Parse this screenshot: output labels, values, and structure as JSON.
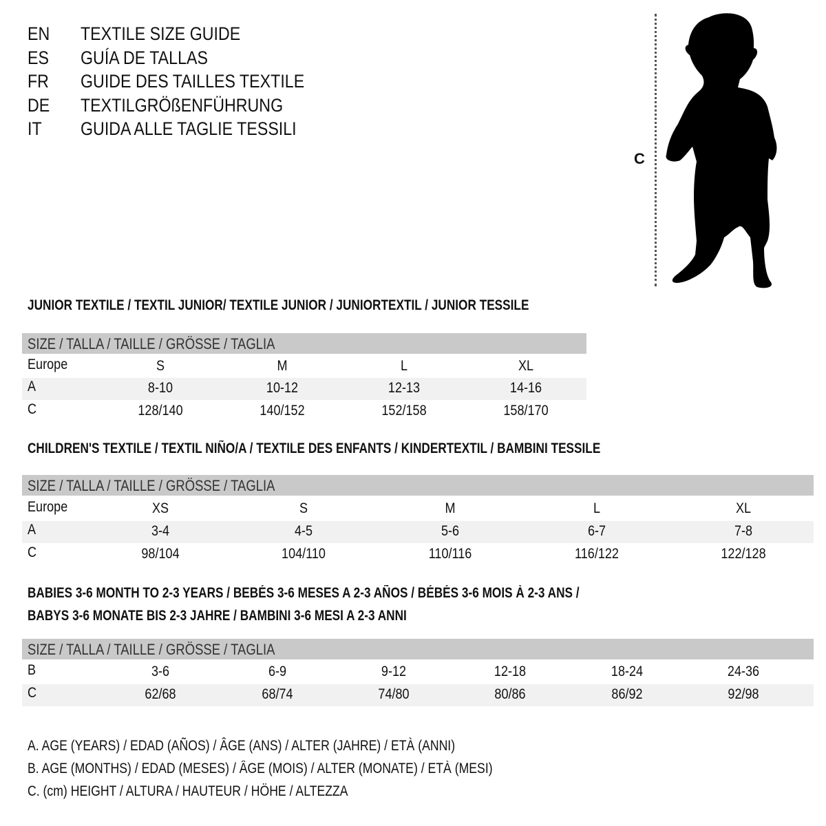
{
  "header": {
    "languages": [
      {
        "code": "EN",
        "title": "TEXTILE SIZE GUIDE"
      },
      {
        "code": "ES",
        "title": "GUÍA DE TALLAS"
      },
      {
        "code": "FR",
        "title": "GUIDE DES TAILLES TEXTILE"
      },
      {
        "code": "DE",
        "title": "TEXTILGRÖßENFÜHRUNG"
      },
      {
        "code": "IT",
        "title": "GUIDA ALLE TAGLIE TESSILI"
      }
    ]
  },
  "figure": {
    "icon": "child-silhouette-icon",
    "height_label": "C"
  },
  "tables": [
    {
      "title": "JUNIOR TEXTILE / TEXTIL JUNIOR/ TEXTILE JUNIOR / JUNIORTEXTIL / JUNIOR TESSILE",
      "header": "SIZE / TALLA / TAILLE / GRÖSSE / TAGLIA",
      "rows": [
        {
          "label": "Europe",
          "values": [
            "S",
            "M",
            "L",
            "XL"
          ]
        },
        {
          "label": "A",
          "values": [
            "8-10",
            "10-12",
            "12-13",
            "14-16"
          ]
        },
        {
          "label": "C",
          "values": [
            "128/140",
            "140/152",
            "152/158",
            "158/170"
          ]
        }
      ]
    },
    {
      "title": "CHILDREN'S TEXTILE / TEXTIL NIÑO/A / TEXTILE DES ENFANTS / KINDERTEXTIL / BAMBINI TESSILE",
      "header": "SIZE / TALLA / TAILLE / GRÖSSE / TAGLIA",
      "rows": [
        {
          "label": "Europe",
          "values": [
            "XS",
            "S",
            "M",
            "L",
            "XL"
          ]
        },
        {
          "label": "A",
          "values": [
            "3-4",
            "4-5",
            "5-6",
            "6-7",
            "7-8"
          ]
        },
        {
          "label": "C",
          "values": [
            "98/104",
            "104/110",
            "110/116",
            "116/122",
            "122/128"
          ]
        }
      ]
    },
    {
      "title": "BABIES 3-6 MONTH TO 2-3 YEARS / BEBÉS 3-6 MESES A 2-3 AÑOS / BÉBÉS 3-6 MOIS À 2-3 ANS /",
      "title2": "BABYS 3-6 MONATE BIS 2-3 JAHRE / BAMBINI 3-6 MESI A 2-3 ANNI",
      "header": "SIZE / TALLA / TAILLE / GRÖSSE / TAGLIA",
      "rows": [
        {
          "label": "B",
          "values": [
            "3-6",
            "6-9",
            "9-12",
            "12-18",
            "18-24",
            "24-36"
          ]
        },
        {
          "label": "C",
          "values": [
            "62/68",
            "68/74",
            "74/80",
            "80/86",
            "86/92",
            "92/98"
          ]
        }
      ]
    }
  ],
  "legend": [
    "A. AGE (YEARS) / EDAD (AÑOS) / ÂGE (ANS) / ALTER (JAHRE) / ETÀ (ANNI)",
    "B. AGE (MONTHS) / EDAD (MESES) / ÂGE (MOIS) / ALTER (MONATE) / ETÀ (MESI)",
    "C. (cm) HEIGHT / ALTURA / HAUTEUR / HÖHE / ALTEZZA"
  ]
}
